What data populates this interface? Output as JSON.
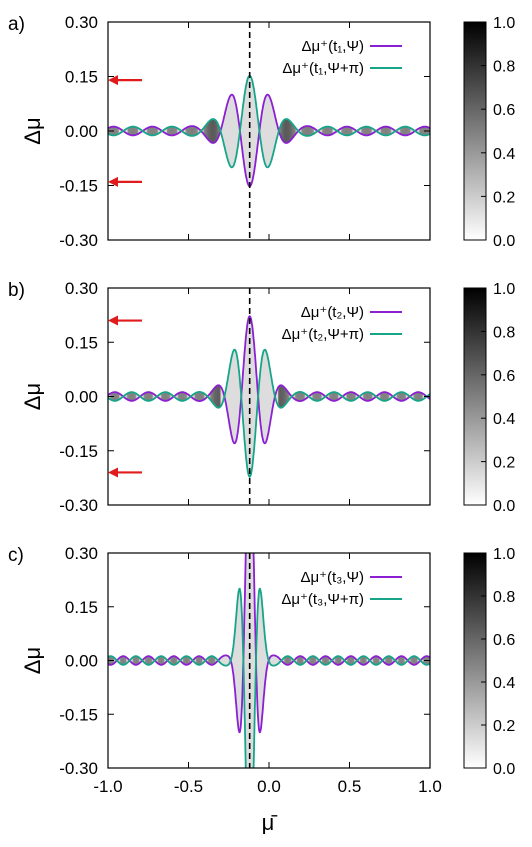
{
  "figure": {
    "xlabel": "μ̄",
    "colors": {
      "series_a": "#8b1fd1",
      "series_b": "#17a589",
      "arrow": "#e11b1b",
      "axis": "#000000"
    }
  },
  "chart_data": [
    {
      "type": "line",
      "panel_label": "a)",
      "ylabel": "Δμ",
      "xlim": [
        -1.0,
        1.0
      ],
      "ylim": [
        -0.3,
        0.3
      ],
      "x_ticks": [
        "-1.0",
        "-0.5",
        "0.0",
        "0.5",
        "1.0"
      ],
      "y_ticks": [
        "0.30",
        "0.15",
        "0.00",
        "-0.15",
        "-0.30"
      ],
      "vline_x": -0.12,
      "arrows_y": [
        0.14,
        -0.14
      ],
      "envelope": {
        "center": -0.12,
        "peak": 0.14,
        "width": 0.17,
        "k": 26
      },
      "series": [
        {
          "name": "Δμ⁺(t₁,Ψ)",
          "color": "#8b1fd1",
          "sign": -1
        },
        {
          "name": "Δμ⁺(t₁,Ψ+π)",
          "color": "#17a589",
          "sign": 1
        }
      ],
      "colorbar": {
        "ticks": [
          "1.0",
          "0.8",
          "0.6",
          "0.4",
          "0.2",
          "0.0"
        ],
        "range": [
          0.0,
          1.0
        ]
      }
    },
    {
      "type": "line",
      "panel_label": "b)",
      "ylabel": "Δμ",
      "xlim": [
        -1.0,
        1.0
      ],
      "ylim": [
        -0.3,
        0.3
      ],
      "x_ticks": [
        "-1.0",
        "-0.5",
        "0.0",
        "0.5",
        "1.0"
      ],
      "y_ticks": [
        "0.30",
        "0.15",
        "0.00",
        "-0.15",
        "-0.30"
      ],
      "vline_x": -0.12,
      "arrows_y": [
        0.21,
        -0.21
      ],
      "envelope": {
        "center": -0.12,
        "peak": 0.21,
        "width": 0.13,
        "k": 30
      },
      "series": [
        {
          "name": "Δμ⁺(t₂,Ψ)",
          "color": "#8b1fd1",
          "sign": 1
        },
        {
          "name": "Δμ⁺(t₂,Ψ+π)",
          "color": "#17a589",
          "sign": -1
        }
      ],
      "colorbar": {
        "ticks": [
          "1.0",
          "0.8",
          "0.6",
          "0.4",
          "0.2",
          "0.0"
        ],
        "range": [
          0.0,
          1.0
        ]
      }
    },
    {
      "type": "line",
      "panel_label": "c)",
      "ylabel": "Δμ",
      "xlim": [
        -1.0,
        1.0
      ],
      "ylim": [
        -0.3,
        0.3
      ],
      "x_ticks": [
        "-1.0",
        "-0.5",
        "0.0",
        "0.5",
        "1.0"
      ],
      "y_ticks": [
        "0.30",
        "0.15",
        "0.00",
        "-0.15",
        "-0.30"
      ],
      "vline_x": -0.12,
      "arrows_y": [],
      "envelope": {
        "center": -0.12,
        "peak": 0.6,
        "width": 0.065,
        "k": 40
      },
      "series": [
        {
          "name": "Δμ⁺(t₃,Ψ)",
          "color": "#8b1fd1",
          "sign": 1
        },
        {
          "name": "Δμ⁺(t₃,Ψ+π)",
          "color": "#17a589",
          "sign": -1
        }
      ],
      "colorbar": {
        "ticks": [
          "1.0",
          "0.8",
          "0.6",
          "0.4",
          "0.2",
          "0.0"
        ],
        "range": [
          0.0,
          1.0
        ]
      }
    }
  ]
}
